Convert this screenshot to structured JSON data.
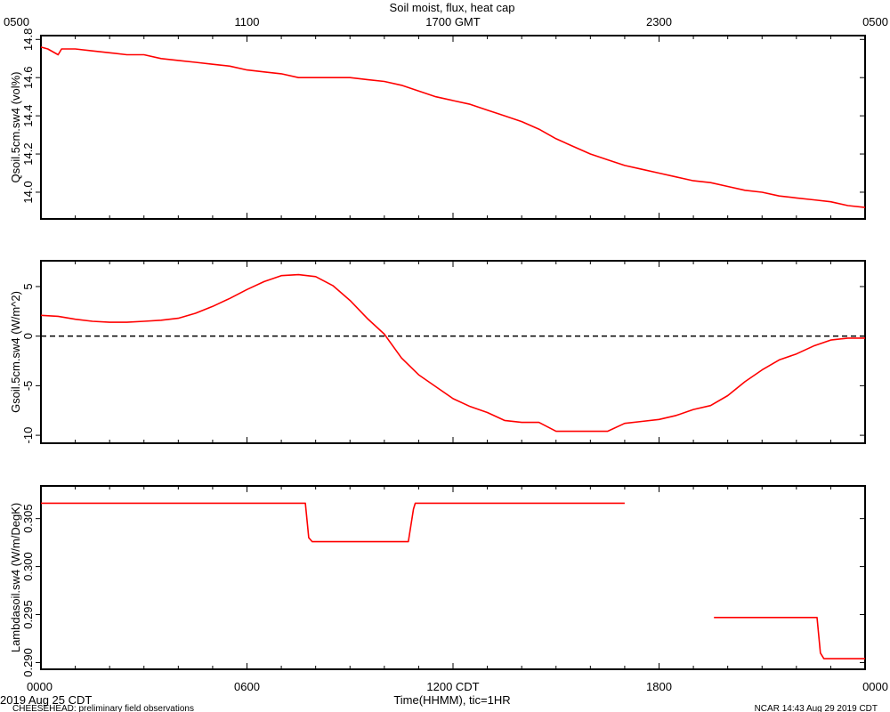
{
  "title": "Soil moist, flux, heat cap",
  "top_axis_ticks": [
    "0500",
    "1100",
    "1700 GMT",
    "2300",
    "0500"
  ],
  "bottom_axis_ticks": [
    "0000",
    "0600",
    "1200 CDT",
    "1800",
    "0000"
  ],
  "xlabel": "Time(HHMM), tic=1HR",
  "date_label": "2019 Aug 25 CDT",
  "footer_left": "CHEESEHEAD: preliminary field observations",
  "footer_right": "NCAR 14:43 Aug 29 2019 CDT",
  "colors": {
    "series": "#ff0000",
    "axis": "#000000",
    "zero_line": "#000000"
  },
  "chart_data": [
    {
      "type": "line",
      "ylabel": "Qsoil.5cm.sw4 (vol%)",
      "ylim": [
        13.86,
        14.82
      ],
      "yticks": [
        14.0,
        14.2,
        14.4,
        14.6,
        14.8
      ],
      "ytick_labels": [
        "14.0",
        "14.2",
        "14.4",
        "14.6",
        "14.8"
      ],
      "x_hours": [
        0,
        0.2,
        0.5,
        0.6,
        1,
        1.5,
        2,
        2.5,
        3,
        3.5,
        4,
        4.5,
        5,
        5.5,
        6,
        6.5,
        7,
        7.5,
        8,
        8.5,
        9,
        9.5,
        10,
        10.5,
        11,
        11.5,
        12,
        12.5,
        13,
        13.5,
        14,
        14.5,
        15,
        15.5,
        16,
        16.5,
        17,
        17.5,
        18,
        18.5,
        19,
        19.5,
        20,
        20.5,
        21,
        21.5,
        22,
        22.5,
        23,
        23.5,
        24
      ],
      "y": [
        14.76,
        14.75,
        14.72,
        14.75,
        14.75,
        14.74,
        14.73,
        14.72,
        14.72,
        14.7,
        14.69,
        14.68,
        14.67,
        14.66,
        14.64,
        14.63,
        14.62,
        14.6,
        14.6,
        14.6,
        14.6,
        14.59,
        14.58,
        14.56,
        14.53,
        14.5,
        14.48,
        14.46,
        14.43,
        14.4,
        14.37,
        14.33,
        14.28,
        14.24,
        14.2,
        14.17,
        14.14,
        14.12,
        14.1,
        14.08,
        14.06,
        14.05,
        14.03,
        14.01,
        14.0,
        13.98,
        13.97,
        13.96,
        13.95,
        13.93,
        13.92
      ]
    },
    {
      "type": "line",
      "ylabel": "Gsoil.5cm.sw4 (W/m^2)",
      "ylim": [
        -10.8,
        7.6
      ],
      "yticks": [
        -10,
        -5,
        0,
        5
      ],
      "ytick_labels": [
        "-10",
        "-5",
        "0",
        "5"
      ],
      "zero_line": true,
      "x_hours": [
        0,
        0.5,
        1,
        1.5,
        2,
        2.5,
        3,
        3.5,
        4,
        4.5,
        5,
        5.5,
        6,
        6.5,
        7,
        7.5,
        8,
        8.5,
        9,
        9.5,
        10,
        10.5,
        11,
        11.5,
        12,
        12.5,
        13,
        13.5,
        14,
        14.5,
        15,
        15.5,
        16,
        16.5,
        17,
        17.5,
        18,
        18.5,
        19,
        19.5,
        20,
        20.5,
        21,
        21.5,
        22,
        22.5,
        23,
        23.5,
        24
      ],
      "y": [
        2.1,
        2.0,
        1.7,
        1.5,
        1.4,
        1.4,
        1.5,
        1.6,
        1.8,
        2.3,
        3.0,
        3.8,
        4.7,
        5.5,
        6.1,
        6.2,
        6.0,
        5.1,
        3.6,
        1.8,
        0.2,
        -2.2,
        -3.9,
        -5.1,
        -6.3,
        -7.1,
        -7.7,
        -8.5,
        -8.7,
        -8.7,
        -9.6,
        -9.6,
        -9.6,
        -9.6,
        -8.8,
        -8.6,
        -8.4,
        -8.0,
        -7.4,
        -7.0,
        -6.0,
        -4.6,
        -3.4,
        -2.4,
        -1.8,
        -1.0,
        -0.4,
        -0.2,
        -0.2
      ]
    },
    {
      "type": "line",
      "ylabel": "Lambdasoil.sw4 (W/m/DegK)",
      "ylim": [
        0.2893,
        0.3084
      ],
      "yticks": [
        0.29,
        0.295,
        0.3,
        0.305
      ],
      "ytick_labels": [
        "0.290",
        "0.295",
        "0.300",
        "0.305"
      ],
      "segments": [
        {
          "x_hours": [
            0,
            7.7,
            7.8,
            7.9,
            10.7,
            10.85,
            10.9,
            17.0
          ],
          "y": [
            0.3066,
            0.3066,
            0.303,
            0.3026,
            0.3026,
            0.306,
            0.3066,
            0.3066
          ]
        },
        {
          "x_hours": [
            19.6,
            22.6,
            22.7,
            22.8,
            24.0
          ],
          "y": [
            0.2947,
            0.2947,
            0.291,
            0.2904,
            0.2904
          ]
        }
      ]
    }
  ]
}
